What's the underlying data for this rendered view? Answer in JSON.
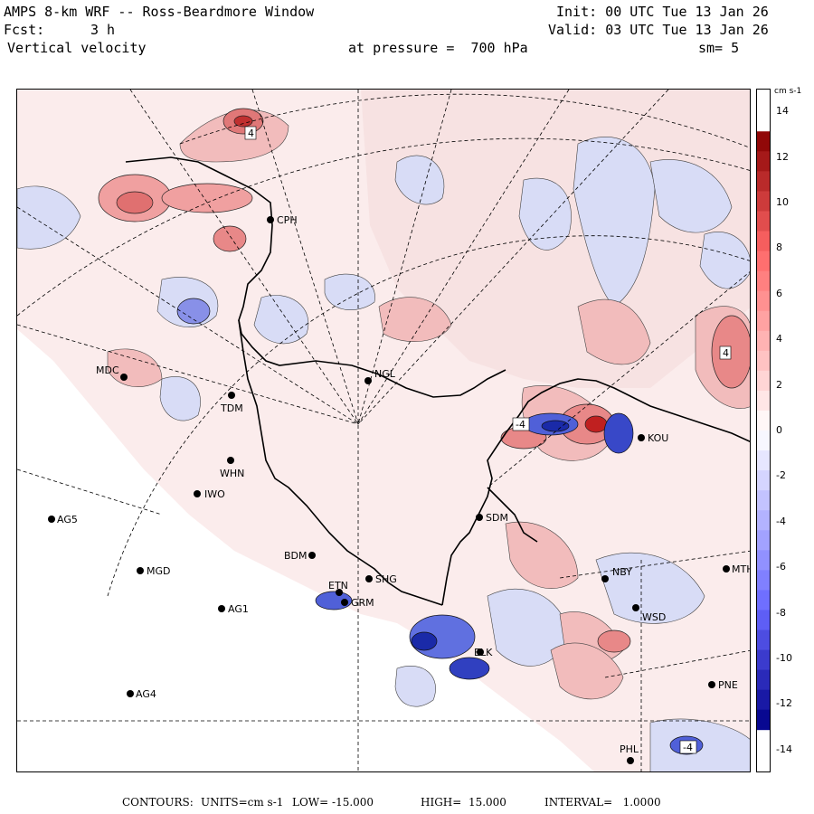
{
  "header": {
    "title": "AMPS 8-km WRF -- Ross-Beardmore Window",
    "init": "Init: 00 UTC Tue 13 Jan 26",
    "fcst_label": "Fcst:",
    "fcst_value": "3 h",
    "valid": "Valid: 03 UTC Tue 13 Jan 26",
    "field": "Vertical velocity",
    "pressure": "at pressure =  700 hPa",
    "smoothing": "sm= 5"
  },
  "colorbar": {
    "units": "cm s-1",
    "labels": [
      "14",
      "12",
      "10",
      "8",
      "6",
      "4",
      "2",
      "0",
      "-2",
      "-4",
      "-6",
      "-8",
      "-10",
      "-12",
      "-14"
    ],
    "min": -15,
    "max": 15
  },
  "footer": {
    "contours_label": "CONTOURS:",
    "units_label": "UNITS=cm s-1",
    "low": "LOW= -15.000",
    "high": "HIGH=  15.000",
    "interval": "INTERVAL=   1.0000"
  },
  "stations": [
    {
      "code": "CPH"
    },
    {
      "code": "MDC"
    },
    {
      "code": "TDM"
    },
    {
      "code": "NGL"
    },
    {
      "code": "WHN"
    },
    {
      "code": "IWO"
    },
    {
      "code": "AG5"
    },
    {
      "code": "SDM"
    },
    {
      "code": "BDM"
    },
    {
      "code": "MGD"
    },
    {
      "code": "SHG"
    },
    {
      "code": "GRM"
    },
    {
      "code": "ETN"
    },
    {
      "code": "AG1"
    },
    {
      "code": "NBY"
    },
    {
      "code": "WSD"
    },
    {
      "code": "MTH"
    },
    {
      "code": "ELK"
    },
    {
      "code": "PNE"
    },
    {
      "code": "AG4"
    },
    {
      "code": "PHL"
    },
    {
      "code": "KOU"
    }
  ],
  "contour_labels": [
    "4",
    "4",
    "-4",
    "-4"
  ],
  "colors": {
    "positive": "#f0a8a8",
    "positive_strong": "#c02020",
    "negative": "#a8b0f0",
    "negative_strong": "#1020a0",
    "background_pos": "#fbecec",
    "background_neg": "#eceef9"
  }
}
